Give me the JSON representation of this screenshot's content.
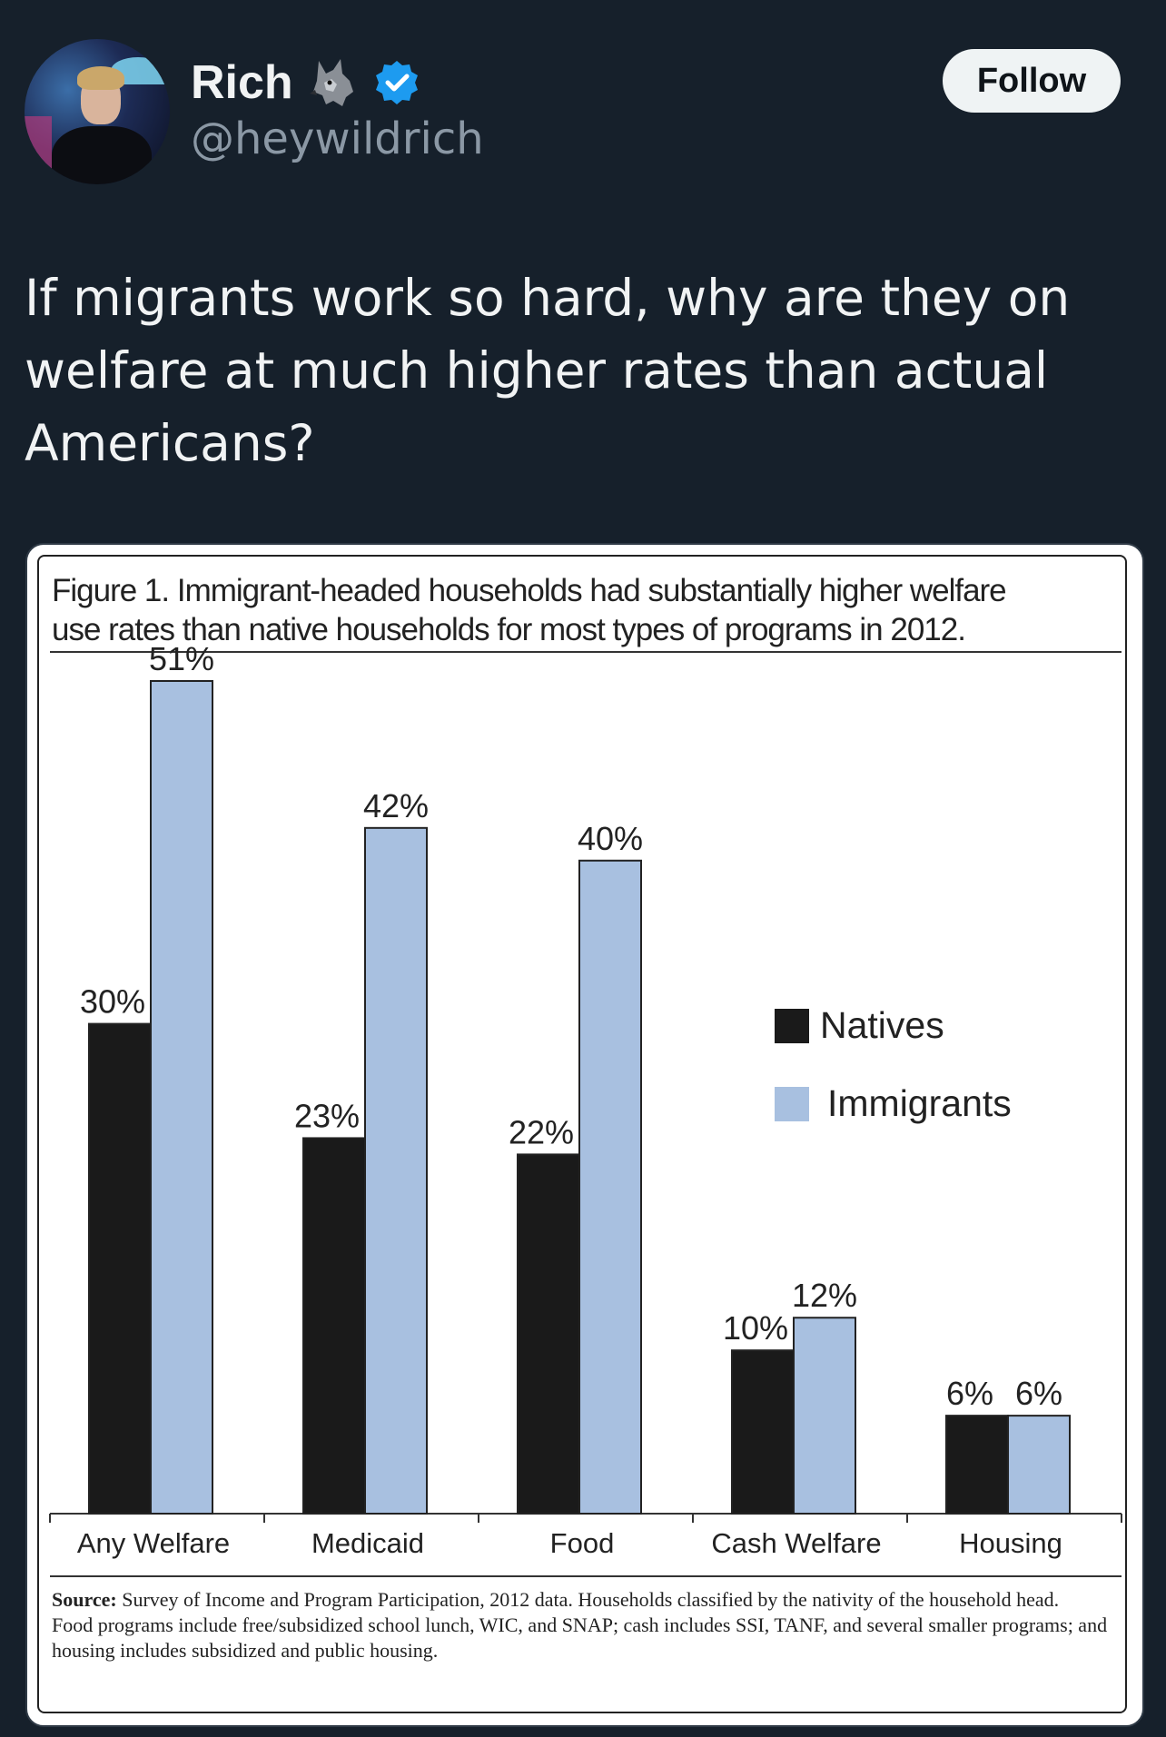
{
  "user": {
    "name": "Rich",
    "handle": "@heywildrich",
    "follow_label": "Follow"
  },
  "tweet": {
    "text": "If migrants work so hard, why are they on welfare at much higher rates than actual Americans?"
  },
  "figure": {
    "title_line1": "Figure 1. Immigrant-headed households had substantially higher welfare",
    "title_line2": "use rates than native households for most types of programs in 2012.",
    "source_label": "Source:",
    "source_line1": " Survey of Income and Program Participation, 2012 data. Households classified by the nativity of the household head.",
    "source_line2": "Food programs include free/subsidized school lunch, WIC, and SNAP; cash includes SSI, TANF, and several smaller programs; and housing includes subsidized and public housing."
  },
  "chart_data": {
    "type": "bar",
    "categories": [
      "Any Welfare",
      "Medicaid",
      "Food",
      "Cash Welfare",
      "Housing"
    ],
    "series": [
      {
        "name": "Natives",
        "values": [
          30,
          23,
          22,
          10,
          6
        ],
        "labels": [
          "30%",
          "23%",
          "22%",
          "10%",
          "6%"
        ],
        "color": "#1a1a1a"
      },
      {
        "name": "Immigrants",
        "values": [
          51,
          42,
          40,
          12,
          6
        ],
        "labels": [
          "51%",
          "42%",
          "40%",
          "12%",
          "6%"
        ],
        "color": "#a8c0e0"
      }
    ],
    "ylim": [
      0,
      51
    ],
    "legend_position": "right-middle",
    "grid": false
  },
  "icons": {
    "wolf": "wolf-emoji-icon",
    "verified": "verified-badge-icon"
  },
  "colors": {
    "background": "#16202b",
    "verified": "#1d9bf0",
    "follow_bg": "#eff3f4"
  }
}
